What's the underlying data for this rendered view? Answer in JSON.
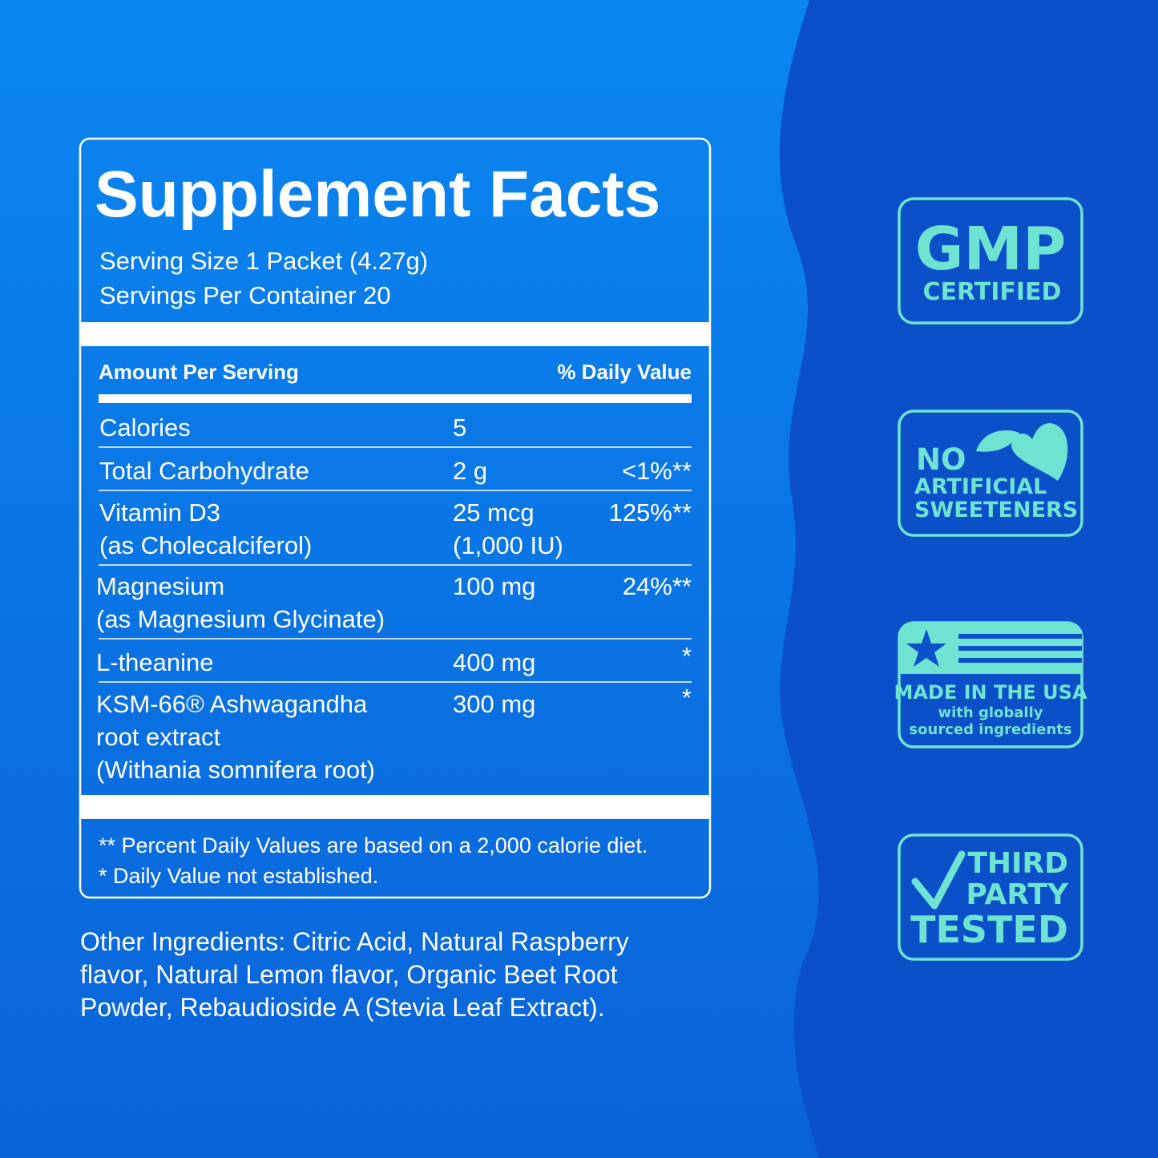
{
  "facts": {
    "title": "Supplement Facts",
    "serving_size": "Serving Size 1 Packet (4.27g)",
    "servings_per_container": "Servings Per Container 20",
    "header": [
      "Amount Per Serving",
      "% Daily Value"
    ],
    "rows": [
      {
        "name": [
          "Calories"
        ],
        "amount": [
          "5"
        ]
      },
      {
        "name": [
          "Total Carbohydrate"
        ],
        "amount": [
          "2 g"
        ],
        "dv": "<1%**"
      },
      {
        "name": [
          "Vitamin D3",
          "(as Cholecalciferol)"
        ],
        "amount": [
          "25 mcg",
          "(1,000 IU)"
        ],
        "dv": "125%**"
      },
      {
        "name": [
          "Magnesium",
          "(as Magnesium Glycinate)"
        ],
        "amount": [
          "100 mg"
        ],
        "dv": "24%**"
      },
      {
        "name": [
          "L-theanine"
        ],
        "amount": [
          "400 mg"
        ],
        "dv": "*"
      },
      {
        "name": [
          "KSM-66® Ashwagandha",
          "root extract",
          "(Withania somnifera root)"
        ],
        "amount": [
          "300 mg"
        ],
        "dv": "*"
      }
    ],
    "footnotes": [
      "** Percent Daily Values are based on a 2,000 calorie diet.",
      "* Daily Value not established."
    ]
  },
  "other_ingredients": [
    "Other Ingredients: Citric Acid, Natural Raspberry",
    "flavor, Natural Lemon flavor, Organic Beet Root",
    "Powder, Rebaudioside A (Stevia Leaf Extract)."
  ],
  "badges": [
    {
      "lines": [
        "GMP",
        "CERTIFIED"
      ]
    },
    {
      "lines": [
        "NO",
        "ARTIFICIAL",
        "SWEETENERS"
      ]
    },
    {
      "lines": [
        "MADE IN THE USA",
        "with globally",
        "sourced ingredients"
      ]
    },
    {
      "lines": [
        "THIRD",
        "PARTY",
        "TESTED"
      ]
    }
  ]
}
